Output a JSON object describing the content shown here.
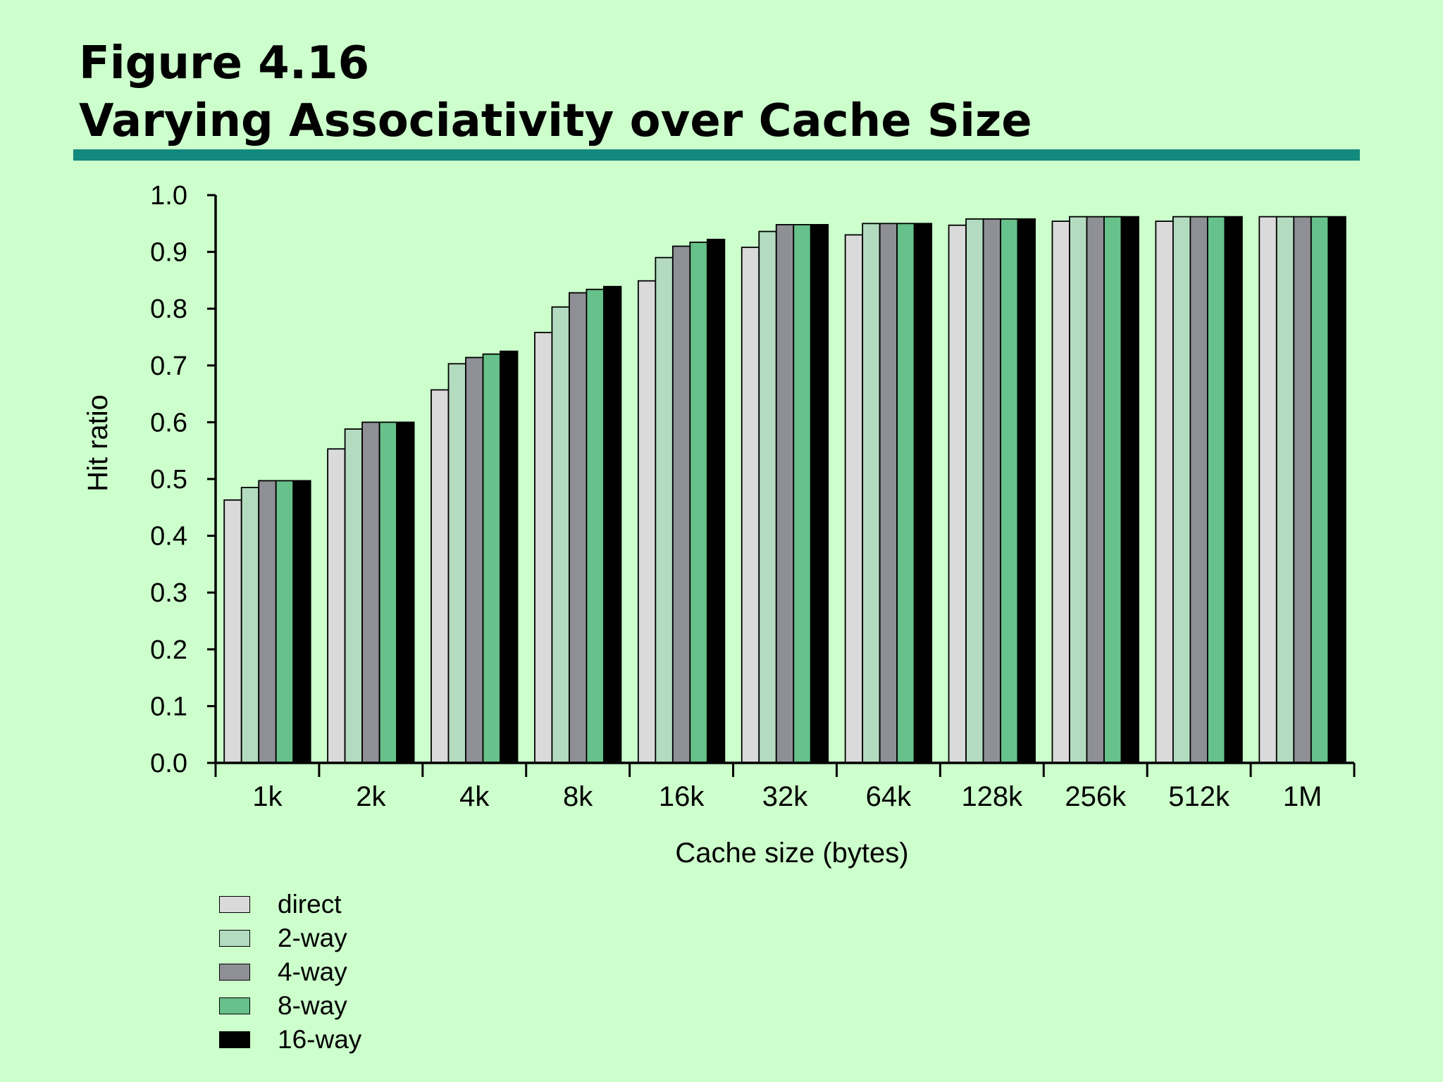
{
  "figure": {
    "number_label": "Figure 4.16",
    "title": "Varying Associativity over Cache Size"
  },
  "colors": {
    "background": "#ccffcc",
    "rule": "#138a7e"
  },
  "chart_data": {
    "type": "bar",
    "title": "Varying Associativity over Cache Size",
    "xlabel": "Cache size (bytes)",
    "ylabel": "Hit ratio",
    "ylim": [
      0,
      1.0
    ],
    "y_ticks": [
      "0.0",
      "0.1",
      "0.2",
      "0.3",
      "0.4",
      "0.5",
      "0.6",
      "0.7",
      "0.8",
      "0.9",
      "1.0"
    ],
    "categories": [
      "1k",
      "2k",
      "4k",
      "8k",
      "16k",
      "32k",
      "64k",
      "128k",
      "256k",
      "512k",
      "1M"
    ],
    "grid": false,
    "legend_position": "bottom-left",
    "series": [
      {
        "name": "direct",
        "color": "#dadada",
        "values": [
          0.463,
          0.553,
          0.657,
          0.758,
          0.849,
          0.908,
          0.93,
          0.947,
          0.954,
          0.954,
          0.962
        ]
      },
      {
        "name": "2-way",
        "color": "#b3dbc0",
        "values": [
          0.485,
          0.588,
          0.703,
          0.803,
          0.89,
          0.936,
          0.95,
          0.958,
          0.962,
          0.962,
          0.962
        ]
      },
      {
        "name": "4-way",
        "color": "#8f8f96",
        "values": [
          0.497,
          0.6,
          0.714,
          0.828,
          0.91,
          0.948,
          0.95,
          0.958,
          0.962,
          0.962,
          0.962
        ]
      },
      {
        "name": "8-way",
        "color": "#66c28a",
        "values": [
          0.497,
          0.6,
          0.72,
          0.834,
          0.917,
          0.948,
          0.95,
          0.958,
          0.962,
          0.962,
          0.962
        ]
      },
      {
        "name": "16-way",
        "color": "#000000",
        "values": [
          0.497,
          0.6,
          0.725,
          0.839,
          0.922,
          0.948,
          0.95,
          0.958,
          0.962,
          0.962,
          0.962
        ]
      }
    ]
  }
}
